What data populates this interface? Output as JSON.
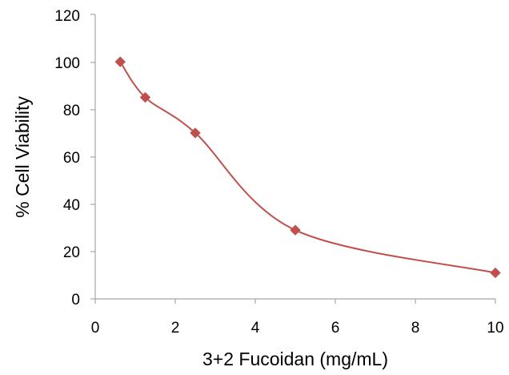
{
  "chart_data": {
    "type": "scatter",
    "title": "",
    "xlabel": "3+2 Fucoidan (mg/mL)",
    "ylabel": "% Cell Viability",
    "xlim": [
      0,
      10
    ],
    "ylim": [
      0,
      120
    ],
    "x_ticks": [
      "0",
      "2",
      "4",
      "6",
      "8",
      "10"
    ],
    "y_ticks": [
      "0",
      "20",
      "40",
      "60",
      "80",
      "100",
      "120"
    ],
    "grid": false,
    "legend": "none",
    "smoothed_line": true,
    "marker": "diamond",
    "series": [
      {
        "color": "#C0504D",
        "x": [
          0.625,
          1.25,
          2.5,
          5,
          10
        ],
        "y": [
          100,
          85,
          70,
          29,
          11
        ]
      }
    ]
  }
}
